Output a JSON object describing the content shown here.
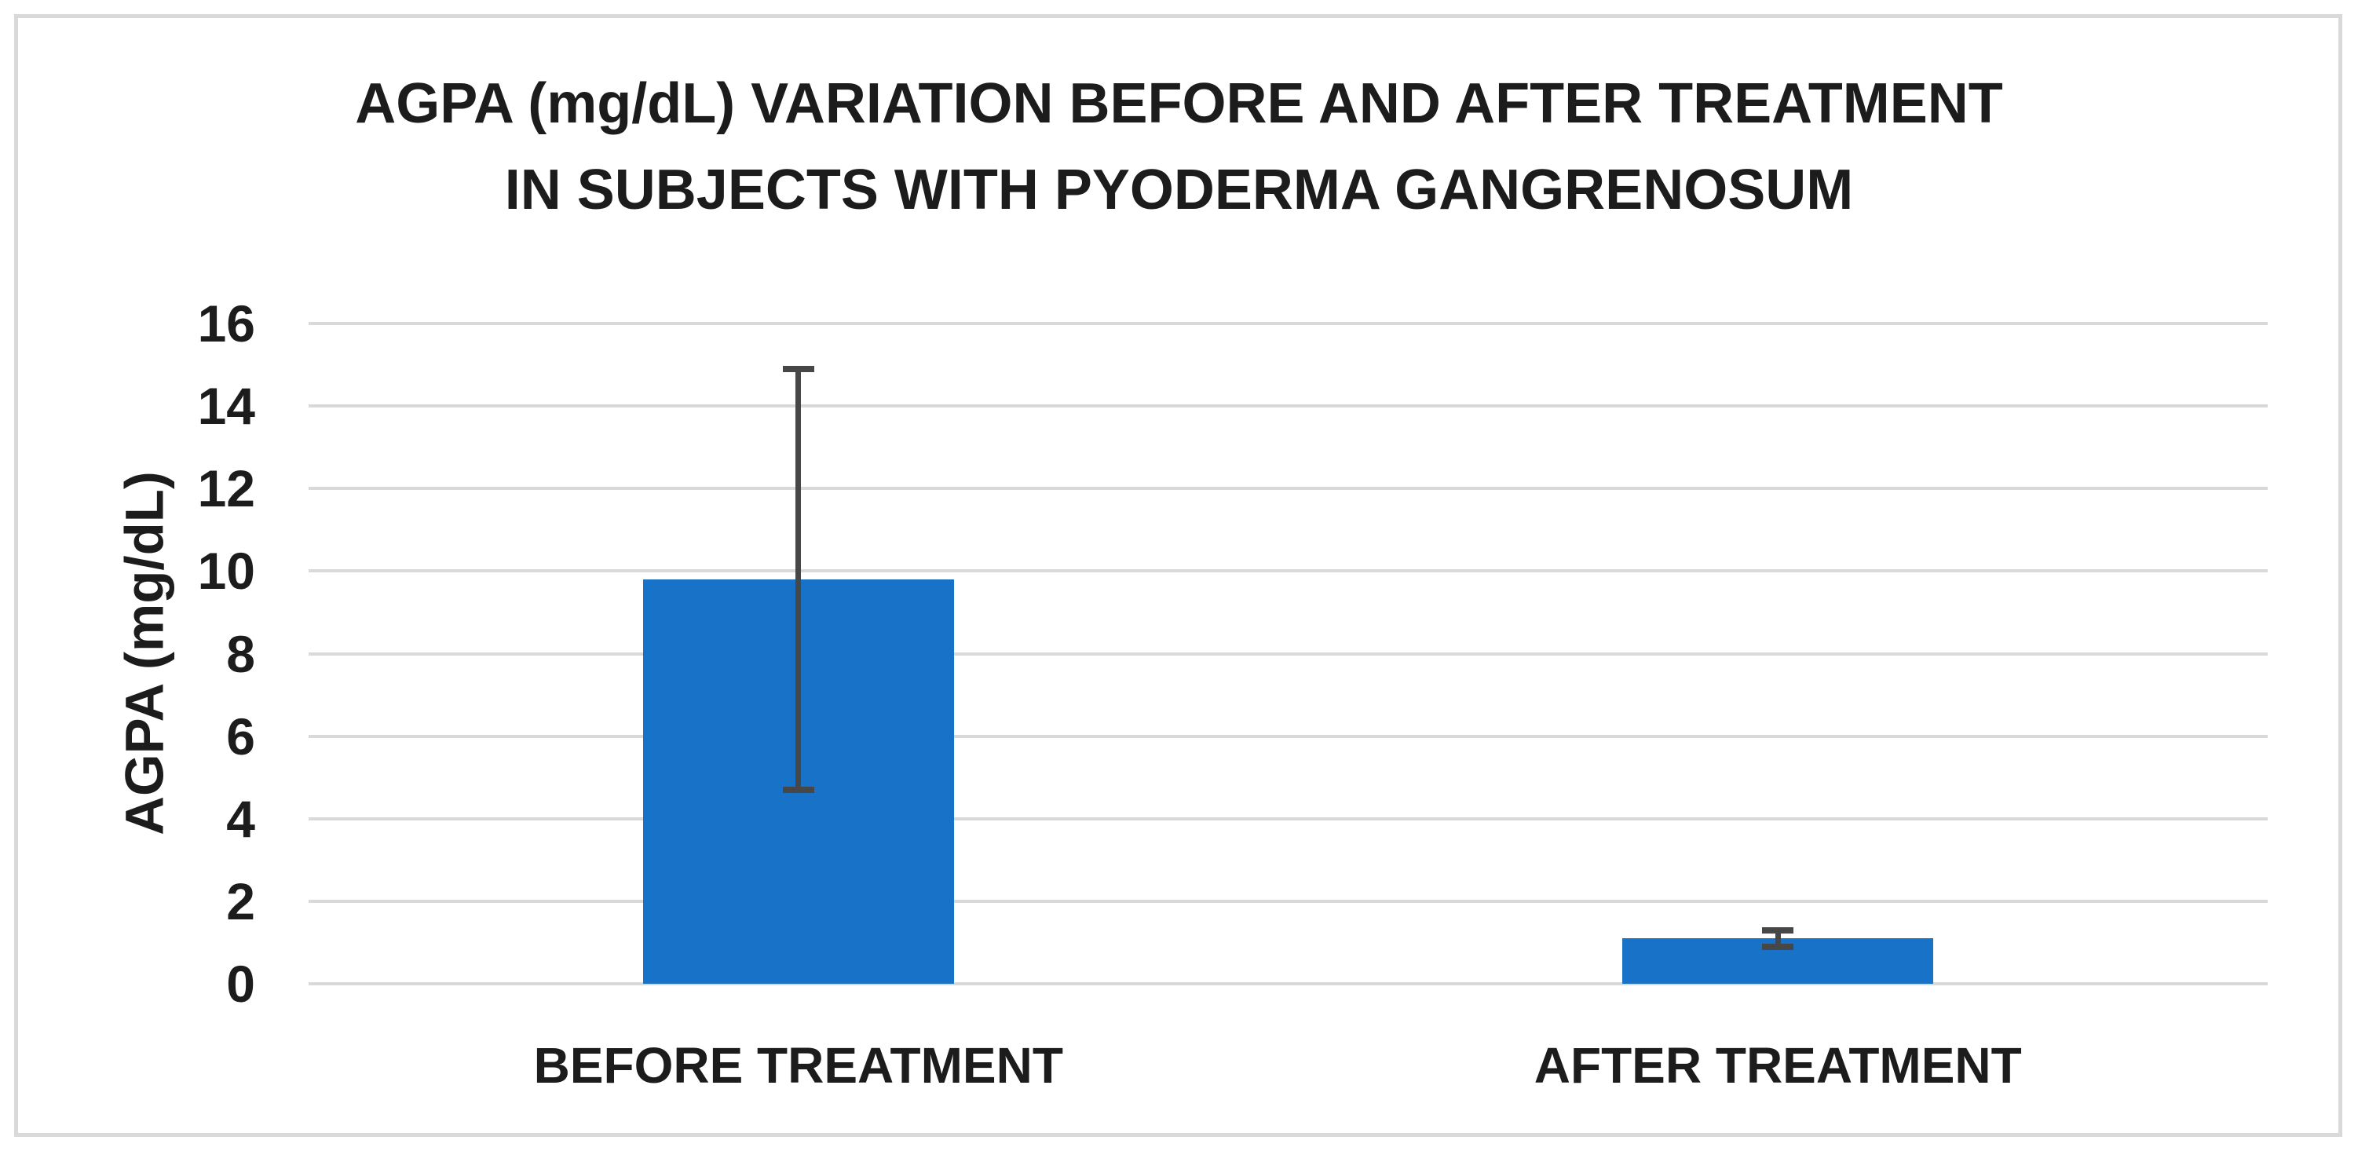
{
  "figure": {
    "background_color": "#ffffff",
    "border_color": "#d9d9d9"
  },
  "chart_data": {
    "type": "bar",
    "title": "AGPA (mg/dL) VARIATION BEFORE AND AFTER TREATMENT IN SUBJECTS WITH PYODERMA GANGRENOSUM",
    "title_lines": [
      "AGPA (mg/dL) VARIATION BEFORE AND AFTER TREATMENT",
      "IN SUBJECTS WITH PYODERMA GANGRENOSUM"
    ],
    "xlabel": "",
    "ylabel": "AGPA (mg/dL)",
    "categories": [
      "BEFORE TREATMENT",
      "AFTER TREATMENT"
    ],
    "values": [
      9.8,
      1.1
    ],
    "error_bars": [
      {
        "low": 4.7,
        "high": 14.9
      },
      {
        "low": 0.9,
        "high": 1.3
      }
    ],
    "ylim": [
      0,
      16
    ],
    "yticks": [
      0,
      2,
      4,
      6,
      8,
      10,
      12,
      14,
      16
    ],
    "grid": "horizontal-only",
    "legend": "none",
    "bar_color": "#1772c8",
    "error_bar_color": "#474747",
    "gridline_color": "#d9d9d9",
    "text_color": "#1c1c1c"
  }
}
